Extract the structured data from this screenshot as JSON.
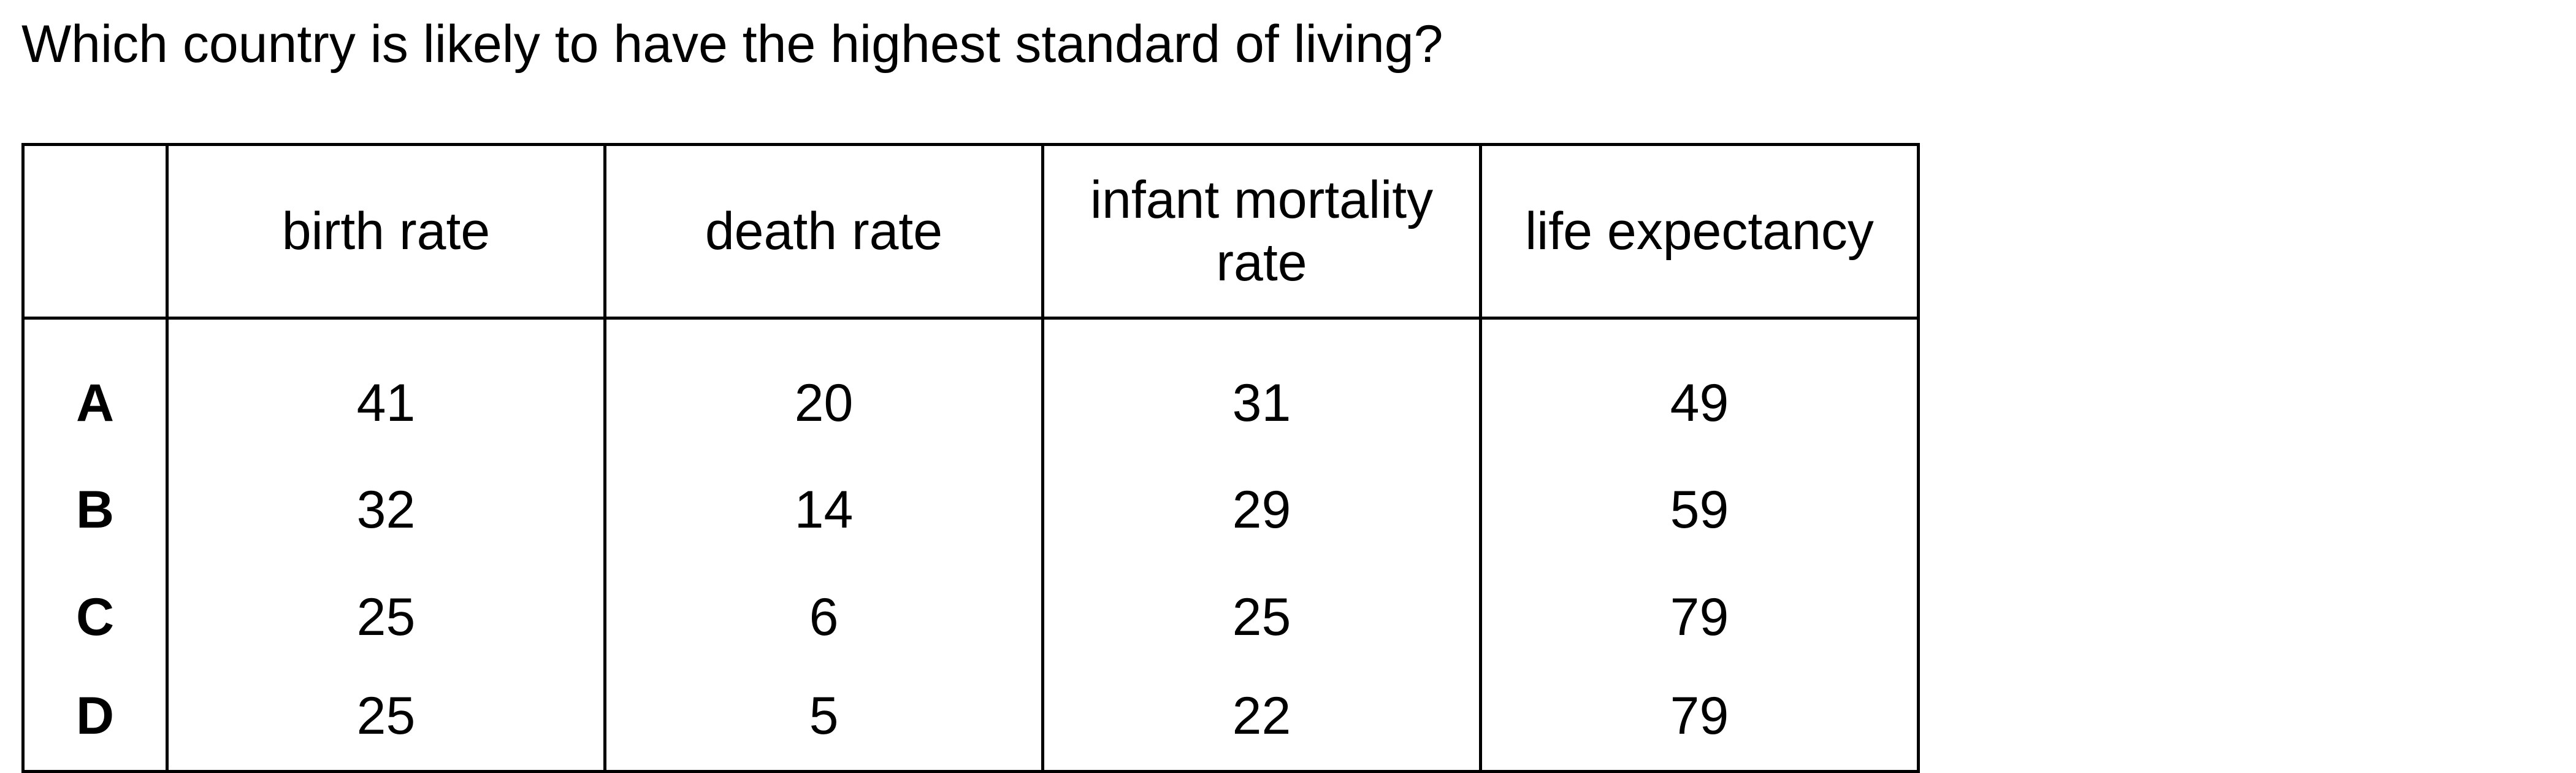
{
  "question": "Which country is likely to have the highest standard of living?",
  "table": {
    "corner": "",
    "columns": [
      "birth rate",
      "death rate",
      "infant mortality\nrate",
      "life expectancy"
    ],
    "rows": [
      {
        "label": "A",
        "values": [
          "41",
          "20",
          "31",
          "49"
        ]
      },
      {
        "label": "B",
        "values": [
          "32",
          "14",
          "29",
          "59"
        ]
      },
      {
        "label": "C",
        "values": [
          "25",
          "6",
          "25",
          "79"
        ]
      },
      {
        "label": "D",
        "values": [
          "25",
          "5",
          "22",
          "79"
        ]
      }
    ]
  }
}
